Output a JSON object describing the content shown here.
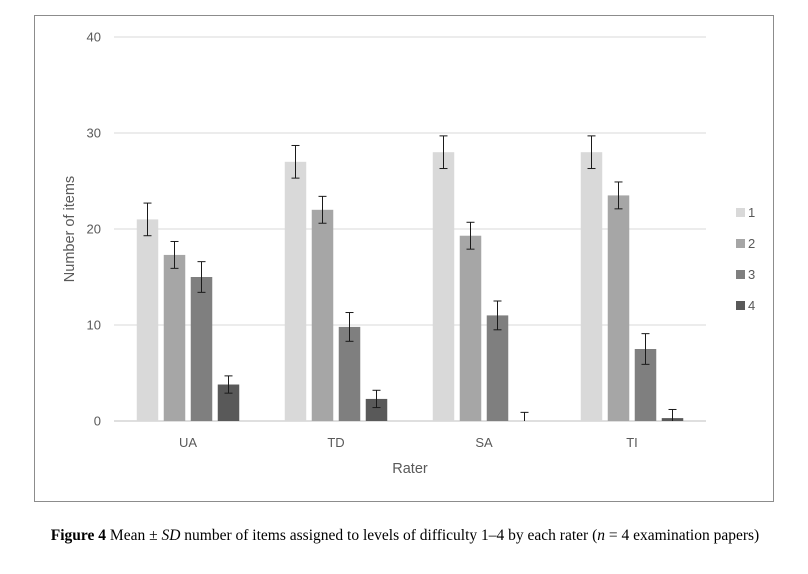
{
  "chart_data": {
    "type": "bar",
    "xlabel": "Rater",
    "ylabel": "Number of items",
    "ylim": [
      0,
      40
    ],
    "yticks": [
      0,
      10,
      20,
      30,
      40
    ],
    "grid": true,
    "legend_placement": "right",
    "categories": [
      "UA",
      "TD",
      "SA",
      "TI"
    ],
    "series": [
      {
        "name": "1",
        "color": "#d9d9d9",
        "values": [
          21,
          27,
          28,
          28
        ],
        "errors": [
          1.7,
          1.7,
          1.7,
          1.7
        ]
      },
      {
        "name": "2",
        "color": "#a6a6a6",
        "values": [
          17.3,
          22,
          19.3,
          23.5
        ],
        "errors": [
          1.4,
          1.4,
          1.4,
          1.4
        ]
      },
      {
        "name": "3",
        "color": "#7f7f7f",
        "values": [
          15,
          9.8,
          11,
          7.5
        ],
        "errors": [
          1.6,
          1.5,
          1.5,
          1.6
        ]
      },
      {
        "name": "4",
        "color": "#595959",
        "values": [
          3.8,
          2.3,
          0,
          0.3
        ],
        "errors": [
          0.9,
          0.9,
          0.9,
          0.9
        ]
      }
    ]
  },
  "caption": {
    "label": "Figure 4",
    "text_before": " Mean ± ",
    "sd": "SD",
    "text_middle": " number of items assigned to levels of difficulty 1–4 by each rater (",
    "n": "n",
    "text_after": " = 4 examination papers)"
  }
}
